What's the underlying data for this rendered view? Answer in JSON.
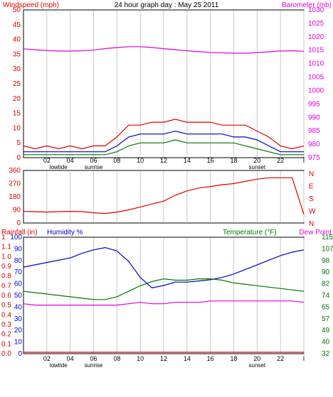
{
  "chart_data": [
    {
      "type": "line",
      "title": "24 hour graph day : May 25 2011",
      "left_axis_label": "Windspeed (mph)",
      "right_axis_label": "Barometer (mb)",
      "x_ticks": [
        "02",
        "04",
        "06",
        "08",
        "10",
        "12",
        "14",
        "16",
        "18",
        "20",
        "22",
        "I"
      ],
      "x_annotations": [
        {
          "label": "lowtide",
          "near": "03"
        },
        {
          "label": "sunrise",
          "near": "06"
        },
        {
          "label": "sunset",
          "near": "20"
        }
      ],
      "y_left_ticks": [
        0,
        5,
        10,
        15,
        20,
        25,
        30,
        35,
        40,
        45,
        50
      ],
      "ylim_left": [
        0,
        50
      ],
      "y_right_ticks": [
        975,
        980,
        985,
        990,
        995,
        1000,
        1005,
        1010,
        1015,
        1020,
        1025,
        1030
      ],
      "ylim_right": [
        975,
        1030
      ],
      "grid": "vertical",
      "x": [
        0,
        1,
        2,
        3,
        4,
        5,
        6,
        7,
        8,
        9,
        10,
        11,
        12,
        13,
        14,
        15,
        16,
        17,
        18,
        19,
        20,
        21,
        22,
        23,
        24
      ],
      "series": [
        {
          "axis": "right",
          "color": "#dd00dd",
          "values": [
            1015.5,
            1015.2,
            1014.9,
            1014.7,
            1014.7,
            1014.8,
            1015.1,
            1015.6,
            1016.0,
            1016.3,
            1016.3,
            1016.0,
            1015.6,
            1015.2,
            1014.8,
            1014.5,
            1014.2,
            1014.0,
            1013.9,
            1013.9,
            1014.1,
            1014.4,
            1014.7,
            1014.8,
            1014.6
          ]
        },
        {
          "axis": "left",
          "color": "#dd0000",
          "values": [
            4,
            3,
            4,
            3,
            4,
            3,
            4,
            4,
            7,
            11,
            11,
            12,
            12,
            13,
            12,
            12,
            12,
            11,
            11,
            11,
            9,
            7,
            4,
            3,
            4
          ]
        },
        {
          "axis": "left",
          "color": "#0000cc",
          "values": [
            2,
            2,
            2,
            2,
            2,
            2,
            2,
            2,
            4,
            7,
            8,
            8,
            8,
            9,
            8,
            8,
            8,
            8,
            7,
            7,
            6,
            4,
            2,
            2,
            2
          ]
        },
        {
          "axis": "left",
          "color": "#007700",
          "values": [
            1,
            1,
            1,
            1,
            1,
            1,
            1,
            1,
            2,
            4,
            5,
            5,
            5,
            6,
            5,
            5,
            5,
            5,
            5,
            4,
            3,
            2,
            1,
            1,
            1
          ]
        }
      ]
    },
    {
      "type": "line",
      "y_left_ticks": [
        0,
        90,
        180,
        270,
        360
      ],
      "ylim_left": [
        0,
        360
      ],
      "y_right_ticks": [
        "N",
        "W",
        "S",
        "E",
        "N"
      ],
      "x": [
        0,
        1,
        2,
        3,
        4,
        5,
        6,
        7,
        8,
        9,
        10,
        11,
        12,
        13,
        14,
        15,
        16,
        17,
        18,
        19,
        20,
        21,
        22,
        23,
        24
      ],
      "series": [
        {
          "color": "#dd0000",
          "values": [
            80,
            78,
            75,
            78,
            80,
            78,
            70,
            65,
            75,
            90,
            110,
            130,
            150,
            190,
            220,
            240,
            250,
            262,
            270,
            285,
            300,
            310,
            310,
            310,
            60
          ]
        }
      ]
    },
    {
      "type": "line",
      "left_axis_label": "Rainfall (in)",
      "left_axis_label_2": "Humidity %",
      "right_axis_label": "Temperature (°F)",
      "right_axis_label_2": "Dew Point",
      "x_ticks": [
        "02",
        "04",
        "06",
        "08",
        "10",
        "12",
        "14",
        "16",
        "18",
        "20",
        "22",
        "I"
      ],
      "x_annotations": [
        {
          "label": "lowtide",
          "near": "03"
        },
        {
          "label": "sunrise",
          "near": "06"
        },
        {
          "label": "sunset",
          "near": "20"
        }
      ],
      "y_left_rain_ticks": [
        "0.0",
        "0.1",
        "0.2",
        "0.3",
        "0.4",
        "0.5",
        "0.6",
        "0.7",
        "0.8",
        "0.9",
        "1.0",
        "1.1",
        "1"
      ],
      "y_left_humidity_ticks": [
        0,
        10,
        20,
        30,
        40,
        50,
        60,
        70,
        80,
        90,
        100
      ],
      "ylim_humidity": [
        0,
        100
      ],
      "y_right_ticks": [
        32,
        40,
        49,
        57,
        65,
        74,
        82,
        90,
        98,
        107,
        115
      ],
      "ylim_right": [
        32,
        115
      ],
      "x": [
        0,
        1,
        2,
        3,
        4,
        5,
        6,
        7,
        8,
        9,
        10,
        11,
        12,
        13,
        14,
        15,
        16,
        17,
        18,
        19,
        20,
        21,
        22,
        23,
        24
      ],
      "series": [
        {
          "name": "Humidity %",
          "axis": "left",
          "color": "#0000cc",
          "values": [
            74,
            76,
            78,
            80,
            82,
            86,
            89,
            91,
            88,
            79,
            65,
            56,
            58,
            61,
            61,
            62,
            63,
            65,
            68,
            72,
            76,
            80,
            84,
            87,
            89
          ]
        },
        {
          "name": "Temperature (°F)",
          "axis": "right",
          "color": "#007700",
          "values": [
            76,
            75,
            74,
            73,
            72,
            71,
            70,
            70,
            72,
            76,
            80,
            83,
            85,
            84,
            84,
            85,
            85,
            84,
            82,
            81,
            80,
            79,
            78,
            77,
            76
          ]
        },
        {
          "name": "Dew Point",
          "axis": "right",
          "color": "#dd00dd",
          "values": [
            67,
            66,
            66,
            66,
            66,
            66,
            66,
            66,
            66,
            67,
            68,
            67,
            67,
            68,
            68,
            68,
            69,
            69,
            69,
            69,
            69,
            69,
            69,
            69,
            68
          ]
        },
        {
          "name": "Rainfall (in)",
          "axis": "left",
          "color": "#dd0000",
          "values": [
            0,
            0,
            0,
            0,
            0,
            0,
            0,
            0,
            0,
            0,
            0,
            0,
            0,
            0,
            0,
            0,
            0,
            0,
            0,
            0,
            0,
            0,
            0,
            0,
            0
          ]
        }
      ]
    }
  ]
}
